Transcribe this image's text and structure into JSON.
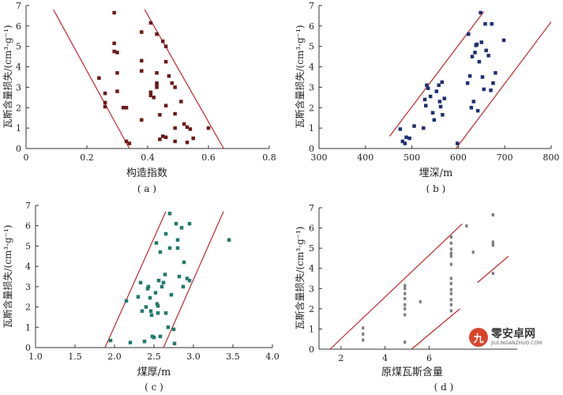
{
  "chart_data": [
    {
      "id": "a",
      "type": "scatter",
      "caption": "( a )",
      "xlabel": "构造指数",
      "ylabel": "瓦斯含量损失/(cm³·g⁻¹)",
      "xlim": [
        0,
        0.8
      ],
      "ylim": [
        0,
        7
      ],
      "xticks": [
        "0",
        "0.2",
        "0.4",
        "0.6",
        "0.8"
      ],
      "yticks": [
        "0",
        "1",
        "2",
        "3",
        "4",
        "5",
        "6",
        "7"
      ],
      "marker": "square",
      "color": "#6b1a1a",
      "line_color": "#c0282d",
      "points": [
        [
          0.24,
          3.45
        ],
        [
          0.26,
          2.7
        ],
        [
          0.26,
          2.25
        ],
        [
          0.26,
          2.05
        ],
        [
          0.29,
          6.65
        ],
        [
          0.29,
          5.15
        ],
        [
          0.29,
          4.75
        ],
        [
          0.3,
          4.7
        ],
        [
          0.3,
          3.7
        ],
        [
          0.3,
          2.8
        ],
        [
          0.32,
          2.0
        ],
        [
          0.33,
          2.0
        ],
        [
          0.33,
          0.35
        ],
        [
          0.34,
          0.25
        ],
        [
          0.38,
          5.7
        ],
        [
          0.38,
          4.3
        ],
        [
          0.38,
          3.8
        ],
        [
          0.38,
          1.4
        ],
        [
          0.41,
          6.15
        ],
        [
          0.41,
          2.75
        ],
        [
          0.41,
          2.6
        ],
        [
          0.42,
          2.5
        ],
        [
          0.43,
          5.6
        ],
        [
          0.43,
          3.7
        ],
        [
          0.43,
          3.2
        ],
        [
          0.43,
          3.1
        ],
        [
          0.43,
          3.0
        ],
        [
          0.44,
          1.65
        ],
        [
          0.44,
          0.45
        ],
        [
          0.45,
          0.6
        ],
        [
          0.45,
          5.25
        ],
        [
          0.46,
          5.0
        ],
        [
          0.46,
          4.25
        ],
        [
          0.46,
          2.1
        ],
        [
          0.46,
          0.55
        ],
        [
          0.47,
          3.55
        ],
        [
          0.48,
          3.2
        ],
        [
          0.49,
          3.0
        ],
        [
          0.49,
          1.7
        ],
        [
          0.49,
          1.0
        ],
        [
          0.49,
          0.35
        ],
        [
          0.51,
          2.3
        ],
        [
          0.52,
          1.2
        ],
        [
          0.53,
          1.05
        ],
        [
          0.53,
          0.3
        ],
        [
          0.54,
          0.95
        ],
        [
          0.55,
          0.5
        ],
        [
          0.6,
          1.0
        ]
      ],
      "bounds": [
        {
          "x": [
            0.09,
            0.34
          ],
          "y": [
            6.8,
            0.0
          ]
        },
        {
          "x": [
            0.39,
            0.65
          ],
          "y": [
            6.8,
            0.0
          ]
        }
      ]
    },
    {
      "id": "b",
      "type": "scatter",
      "caption": "( b )",
      "xlabel": "埋深/m",
      "ylabel": "瓦斯含量损失/(cm³·g⁻¹)",
      "xlim": [
        300,
        800
      ],
      "ylim": [
        0,
        7
      ],
      "xticks": [
        "300",
        "400",
        "500",
        "600",
        "700",
        "800"
      ],
      "yticks": [
        "0",
        "1",
        "2",
        "3",
        "4",
        "5",
        "6",
        "7"
      ],
      "marker": "square",
      "color": "#1d2f6e",
      "line_color": "#c0282d",
      "points": [
        [
          475,
          0.95
        ],
        [
          480,
          0.35
        ],
        [
          485,
          0.25
        ],
        [
          488,
          0.55
        ],
        [
          495,
          0.5
        ],
        [
          505,
          1.1
        ],
        [
          525,
          1.0
        ],
        [
          528,
          2.4
        ],
        [
          530,
          2.1
        ],
        [
          532,
          3.1
        ],
        [
          535,
          2.95
        ],
        [
          540,
          2.55
        ],
        [
          545,
          1.75
        ],
        [
          548,
          1.4
        ],
        [
          553,
          2.8
        ],
        [
          558,
          3.1
        ],
        [
          560,
          2.3
        ],
        [
          562,
          2.05
        ],
        [
          565,
          3.25
        ],
        [
          566,
          1.65
        ],
        [
          570,
          2.45
        ],
        [
          598,
          0.25
        ],
        [
          620,
          3.2
        ],
        [
          622,
          5.6
        ],
        [
          625,
          3.55
        ],
        [
          628,
          2.0
        ],
        [
          630,
          4.5
        ],
        [
          633,
          2.3
        ],
        [
          636,
          4.7
        ],
        [
          638,
          5.05
        ],
        [
          640,
          5.1
        ],
        [
          642,
          1.85
        ],
        [
          645,
          4.25
        ],
        [
          648,
          6.65
        ],
        [
          650,
          5.2
        ],
        [
          652,
          3.5
        ],
        [
          655,
          2.9
        ],
        [
          658,
          6.1
        ],
        [
          660,
          4.8
        ],
        [
          665,
          4.55
        ],
        [
          670,
          2.85
        ],
        [
          672,
          6.1
        ],
        [
          675,
          3.2
        ],
        [
          680,
          3.7
        ],
        [
          698,
          5.3
        ]
      ],
      "bounds": [
        {
          "x": [
            452,
            655
          ],
          "y": [
            0.6,
            6.7
          ]
        },
        {
          "x": [
            595,
            800
          ],
          "y": [
            0.0,
            6.2
          ]
        }
      ]
    },
    {
      "id": "c",
      "type": "scatter",
      "caption": "( c )",
      "xlabel": "煤厚/m",
      "ylabel": "瓦斯含量损失/(cm³·g⁻¹)",
      "xlim": [
        1.0,
        4.0
      ],
      "ylim": [
        0,
        7
      ],
      "xticks": [
        "1.0",
        "1.5",
        "2.0",
        "2.5",
        "3.0",
        "3.5",
        "4.0"
      ],
      "yticks": [
        "0",
        "1",
        "2",
        "3",
        "4",
        "5",
        "6",
        "7"
      ],
      "marker": "square",
      "color": "#1f7a6b",
      "line_color": "#c0282d",
      "points": [
        [
          1.95,
          0.35
        ],
        [
          2.15,
          2.3
        ],
        [
          2.2,
          0.25
        ],
        [
          2.3,
          2.5
        ],
        [
          2.33,
          3.2
        ],
        [
          2.35,
          1.8
        ],
        [
          2.38,
          0.3
        ],
        [
          2.4,
          2.0
        ],
        [
          2.42,
          2.9
        ],
        [
          2.43,
          3.0
        ],
        [
          2.45,
          2.45
        ],
        [
          2.46,
          1.8
        ],
        [
          2.47,
          1.6
        ],
        [
          2.48,
          0.55
        ],
        [
          2.5,
          0.5
        ],
        [
          2.52,
          2.7
        ],
        [
          2.53,
          5.15
        ],
        [
          2.54,
          2.15
        ],
        [
          2.55,
          1.7
        ],
        [
          2.55,
          2.05
        ],
        [
          2.56,
          3.3
        ],
        [
          2.58,
          0.55
        ],
        [
          2.58,
          4.7
        ],
        [
          2.6,
          3.0
        ],
        [
          2.62,
          3.2
        ],
        [
          2.64,
          3.6
        ],
        [
          2.65,
          5.6
        ],
        [
          2.65,
          1.7
        ],
        [
          2.68,
          1.0
        ],
        [
          2.7,
          4.9
        ],
        [
          2.7,
          6.6
        ],
        [
          2.72,
          2.6
        ],
        [
          2.75,
          0.9
        ],
        [
          2.76,
          0.2
        ],
        [
          2.78,
          6.1
        ],
        [
          2.8,
          4.9
        ],
        [
          2.8,
          5.3
        ],
        [
          2.82,
          3.5
        ],
        [
          2.85,
          5.9
        ],
        [
          2.87,
          3.0
        ],
        [
          2.88,
          4.2
        ],
        [
          2.92,
          3.4
        ],
        [
          2.95,
          3.3
        ],
        [
          2.95,
          6.1
        ],
        [
          3.45,
          5.3
        ]
      ],
      "bounds": [
        {
          "x": [
            1.88,
            2.65
          ],
          "y": [
            0.0,
            6.7
          ]
        },
        {
          "x": [
            2.62,
            3.38
          ],
          "y": [
            0.0,
            6.7
          ]
        }
      ]
    },
    {
      "id": "d",
      "type": "scatter",
      "caption": "( d )",
      "xlabel": "原煤瓦斯含量",
      "ylabel": "瓦斯含量损失/(cm³·g⁻¹)",
      "xlim": [
        1,
        10
      ],
      "ylim": [
        0,
        7
      ],
      "xticks": [
        "2",
        "4",
        "6"
      ],
      "yticks": [
        "0",
        "1",
        "2",
        "3",
        "4",
        "5",
        "6",
        "7"
      ],
      "marker": "square",
      "color": "#7d7d7d",
      "line_color": "#c0282d",
      "points": [
        [
          3.0,
          0.45
        ],
        [
          3.0,
          0.75
        ],
        [
          3.0,
          1.05
        ],
        [
          4.9,
          0.35
        ],
        [
          4.9,
          1.7
        ],
        [
          4.9,
          2.0
        ],
        [
          4.9,
          2.2
        ],
        [
          4.9,
          2.5
        ],
        [
          4.9,
          2.75
        ],
        [
          4.9,
          3.0
        ],
        [
          4.9,
          3.15
        ],
        [
          5.6,
          2.35
        ],
        [
          7.0,
          1.9
        ],
        [
          7.0,
          2.2
        ],
        [
          7.0,
          2.45
        ],
        [
          7.0,
          2.75
        ],
        [
          7.0,
          2.95
        ],
        [
          7.0,
          3.25
        ],
        [
          7.0,
          3.5
        ],
        [
          7.0,
          4.2
        ],
        [
          7.0,
          4.6
        ],
        [
          7.0,
          4.75
        ],
        [
          7.0,
          4.95
        ],
        [
          7.0,
          5.25
        ],
        [
          7.0,
          5.55
        ],
        [
          7.7,
          6.1
        ],
        [
          8.9,
          6.65
        ],
        [
          8.9,
          5.3
        ],
        [
          8.9,
          5.15
        ],
        [
          8.9,
          3.75
        ],
        [
          8.0,
          4.8
        ]
      ],
      "bounds": [
        {
          "x": [
            1.5,
            7.5
          ],
          "y": [
            0.0,
            6.2
          ]
        },
        {
          "x": [
            5.2,
            7.4
          ],
          "y": [
            0.0,
            2.0
          ]
        },
        {
          "x": [
            8.2,
            9.6
          ],
          "y": [
            3.3,
            4.6
          ]
        }
      ]
    }
  ],
  "watermark": {
    "mark": "九",
    "main": "零安卓网",
    "sub": "JIULINGANZHUO.COM"
  }
}
